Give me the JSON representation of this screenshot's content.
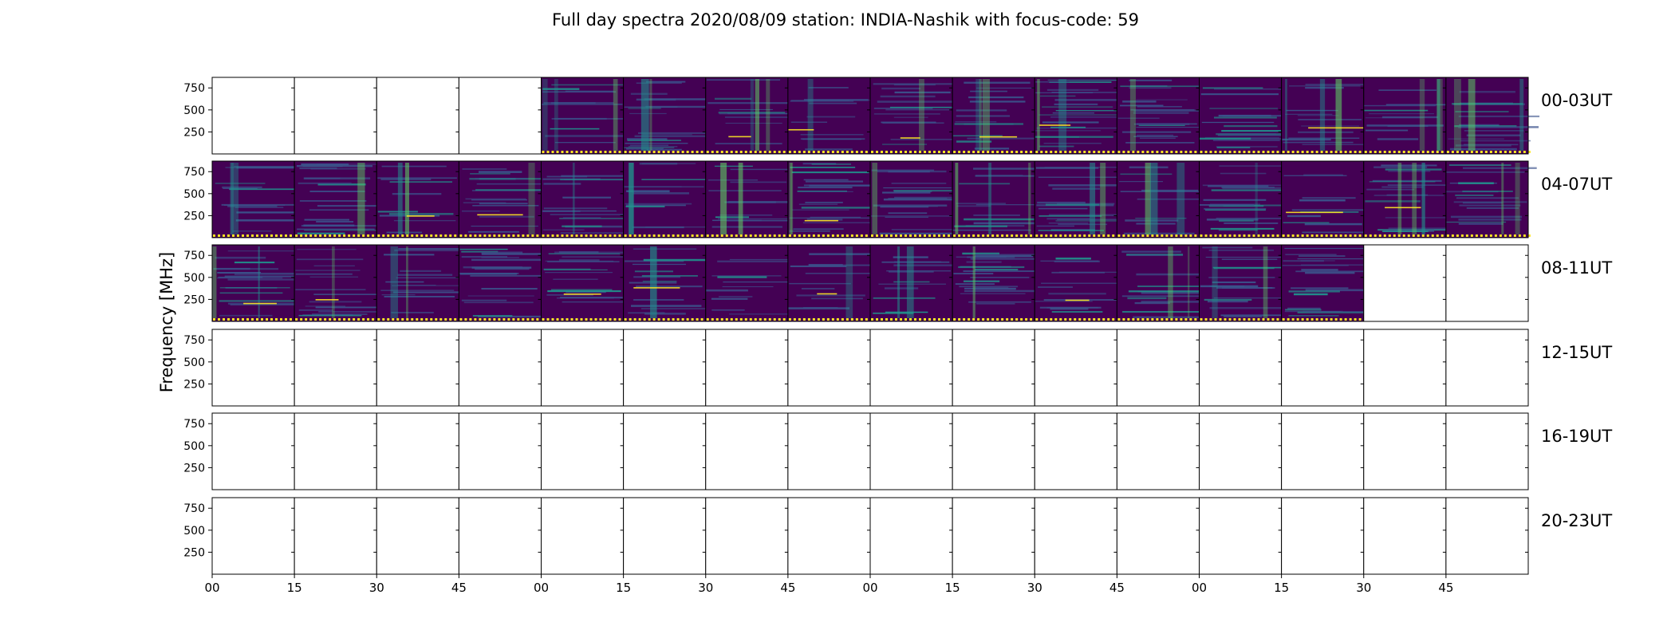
{
  "title": "Full day spectra 2020/08/09 station: INDIA-Nashik with focus-code: 59",
  "ylabel": "Frequency [MHz]",
  "colors": {
    "spectrum_low": "#440154",
    "spectrum_mid": "#3b528b",
    "spectrum_cyan": "#21918c",
    "spectrum_green": "#5ec962",
    "spectrum_high": "#fde725",
    "frame": "#000000",
    "empty_panel": "#ffffff"
  },
  "chart_data": {
    "type": "heatmap",
    "description": "Grid of spectrogram panels; each row covers 4 hours (16 panels of 15 minutes). Filled panels contain spectral data, unfilled panels are blank.",
    "rows": [
      {
        "label": "00-03UT",
        "panels_with_data": [
          0,
          0,
          0,
          0,
          1,
          1,
          1,
          1,
          1,
          1,
          1,
          1,
          1,
          1,
          1,
          1
        ]
      },
      {
        "label": "04-07UT",
        "panels_with_data": [
          1,
          1,
          1,
          1,
          1,
          1,
          1,
          1,
          1,
          1,
          1,
          1,
          1,
          1,
          1,
          1
        ]
      },
      {
        "label": "08-11UT",
        "panels_with_data": [
          1,
          1,
          1,
          1,
          1,
          1,
          1,
          1,
          1,
          1,
          1,
          1,
          1,
          1,
          0,
          0
        ]
      },
      {
        "label": "12-15UT",
        "panels_with_data": [
          0,
          0,
          0,
          0,
          0,
          0,
          0,
          0,
          0,
          0,
          0,
          0,
          0,
          0,
          0,
          0
        ]
      },
      {
        "label": "16-19UT",
        "panels_with_data": [
          0,
          0,
          0,
          0,
          0,
          0,
          0,
          0,
          0,
          0,
          0,
          0,
          0,
          0,
          0,
          0
        ]
      },
      {
        "label": "20-23UT",
        "panels_with_data": [
          0,
          0,
          0,
          0,
          0,
          0,
          0,
          0,
          0,
          0,
          0,
          0,
          0,
          0,
          0,
          0
        ]
      }
    ],
    "yticks": [
      "250",
      "500",
      "750"
    ],
    "ytick_values": [
      250,
      500,
      750
    ],
    "ylim": [
      0,
      870
    ],
    "xtick_labels": [
      "00",
      "15",
      "30",
      "45",
      "00",
      "15",
      "30",
      "45",
      "00",
      "15",
      "30",
      "45",
      "00",
      "15",
      "30",
      "45"
    ],
    "panels_per_row": 16,
    "minutes_per_panel": 15,
    "grid": false
  }
}
